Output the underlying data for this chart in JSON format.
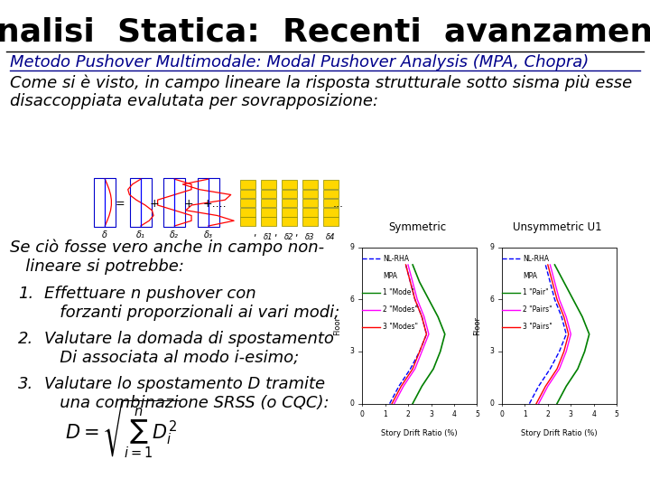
{
  "background_color": "#ffffff",
  "title": "Analisi  Statica:  Recenti  avanzamenti",
  "title_fontsize": 26,
  "subtitle": "Metodo Pushover Multimodale: Modal Pushover Analysis (MPA, Chopra)",
  "subtitle_fontsize": 13,
  "body_text_1": "Come si è visto, in campo lineare la risposta strutturale sotto sisma più esse\ndisaccoppiata evalutata per sovrapposizione:",
  "body_text_1_fontsize": 13,
  "body_text_2": "Se ciò fosse vero anche in campo non-\n   lineare si potrebbe:",
  "body_text_2_fontsize": 13,
  "list_items": [
    "Effettuare n pushover con\n   forzanti proporzionali ai vari modi;",
    "Valutare la domada di spostamento\n   Di associata al modo i-esimo;",
    "Valutare lo spostamento D tramite\n   una combinazione SRSS (o CQC):"
  ],
  "list_fontsize": 13,
  "text_color": "#000000",
  "subtitle_color": "#00008B",
  "graph1_title": "Symmetric",
  "graph2_title": "Unsymmetric U1",
  "legend1": [
    "NL-RHA",
    "MPA",
    "1 \"Mode\"",
    "2 \"Modes\"",
    "3 \"Modes\""
  ],
  "legend2": [
    "NL-RHA",
    "MPA",
    "1 \"Pair\"",
    "2 \"Pairs\"",
    "3 \"Pairs\""
  ],
  "legend_colors": [
    "blue",
    "black",
    "green",
    "magenta",
    "red"
  ],
  "legend_ls": [
    "--",
    null,
    "-",
    "-",
    "-"
  ]
}
